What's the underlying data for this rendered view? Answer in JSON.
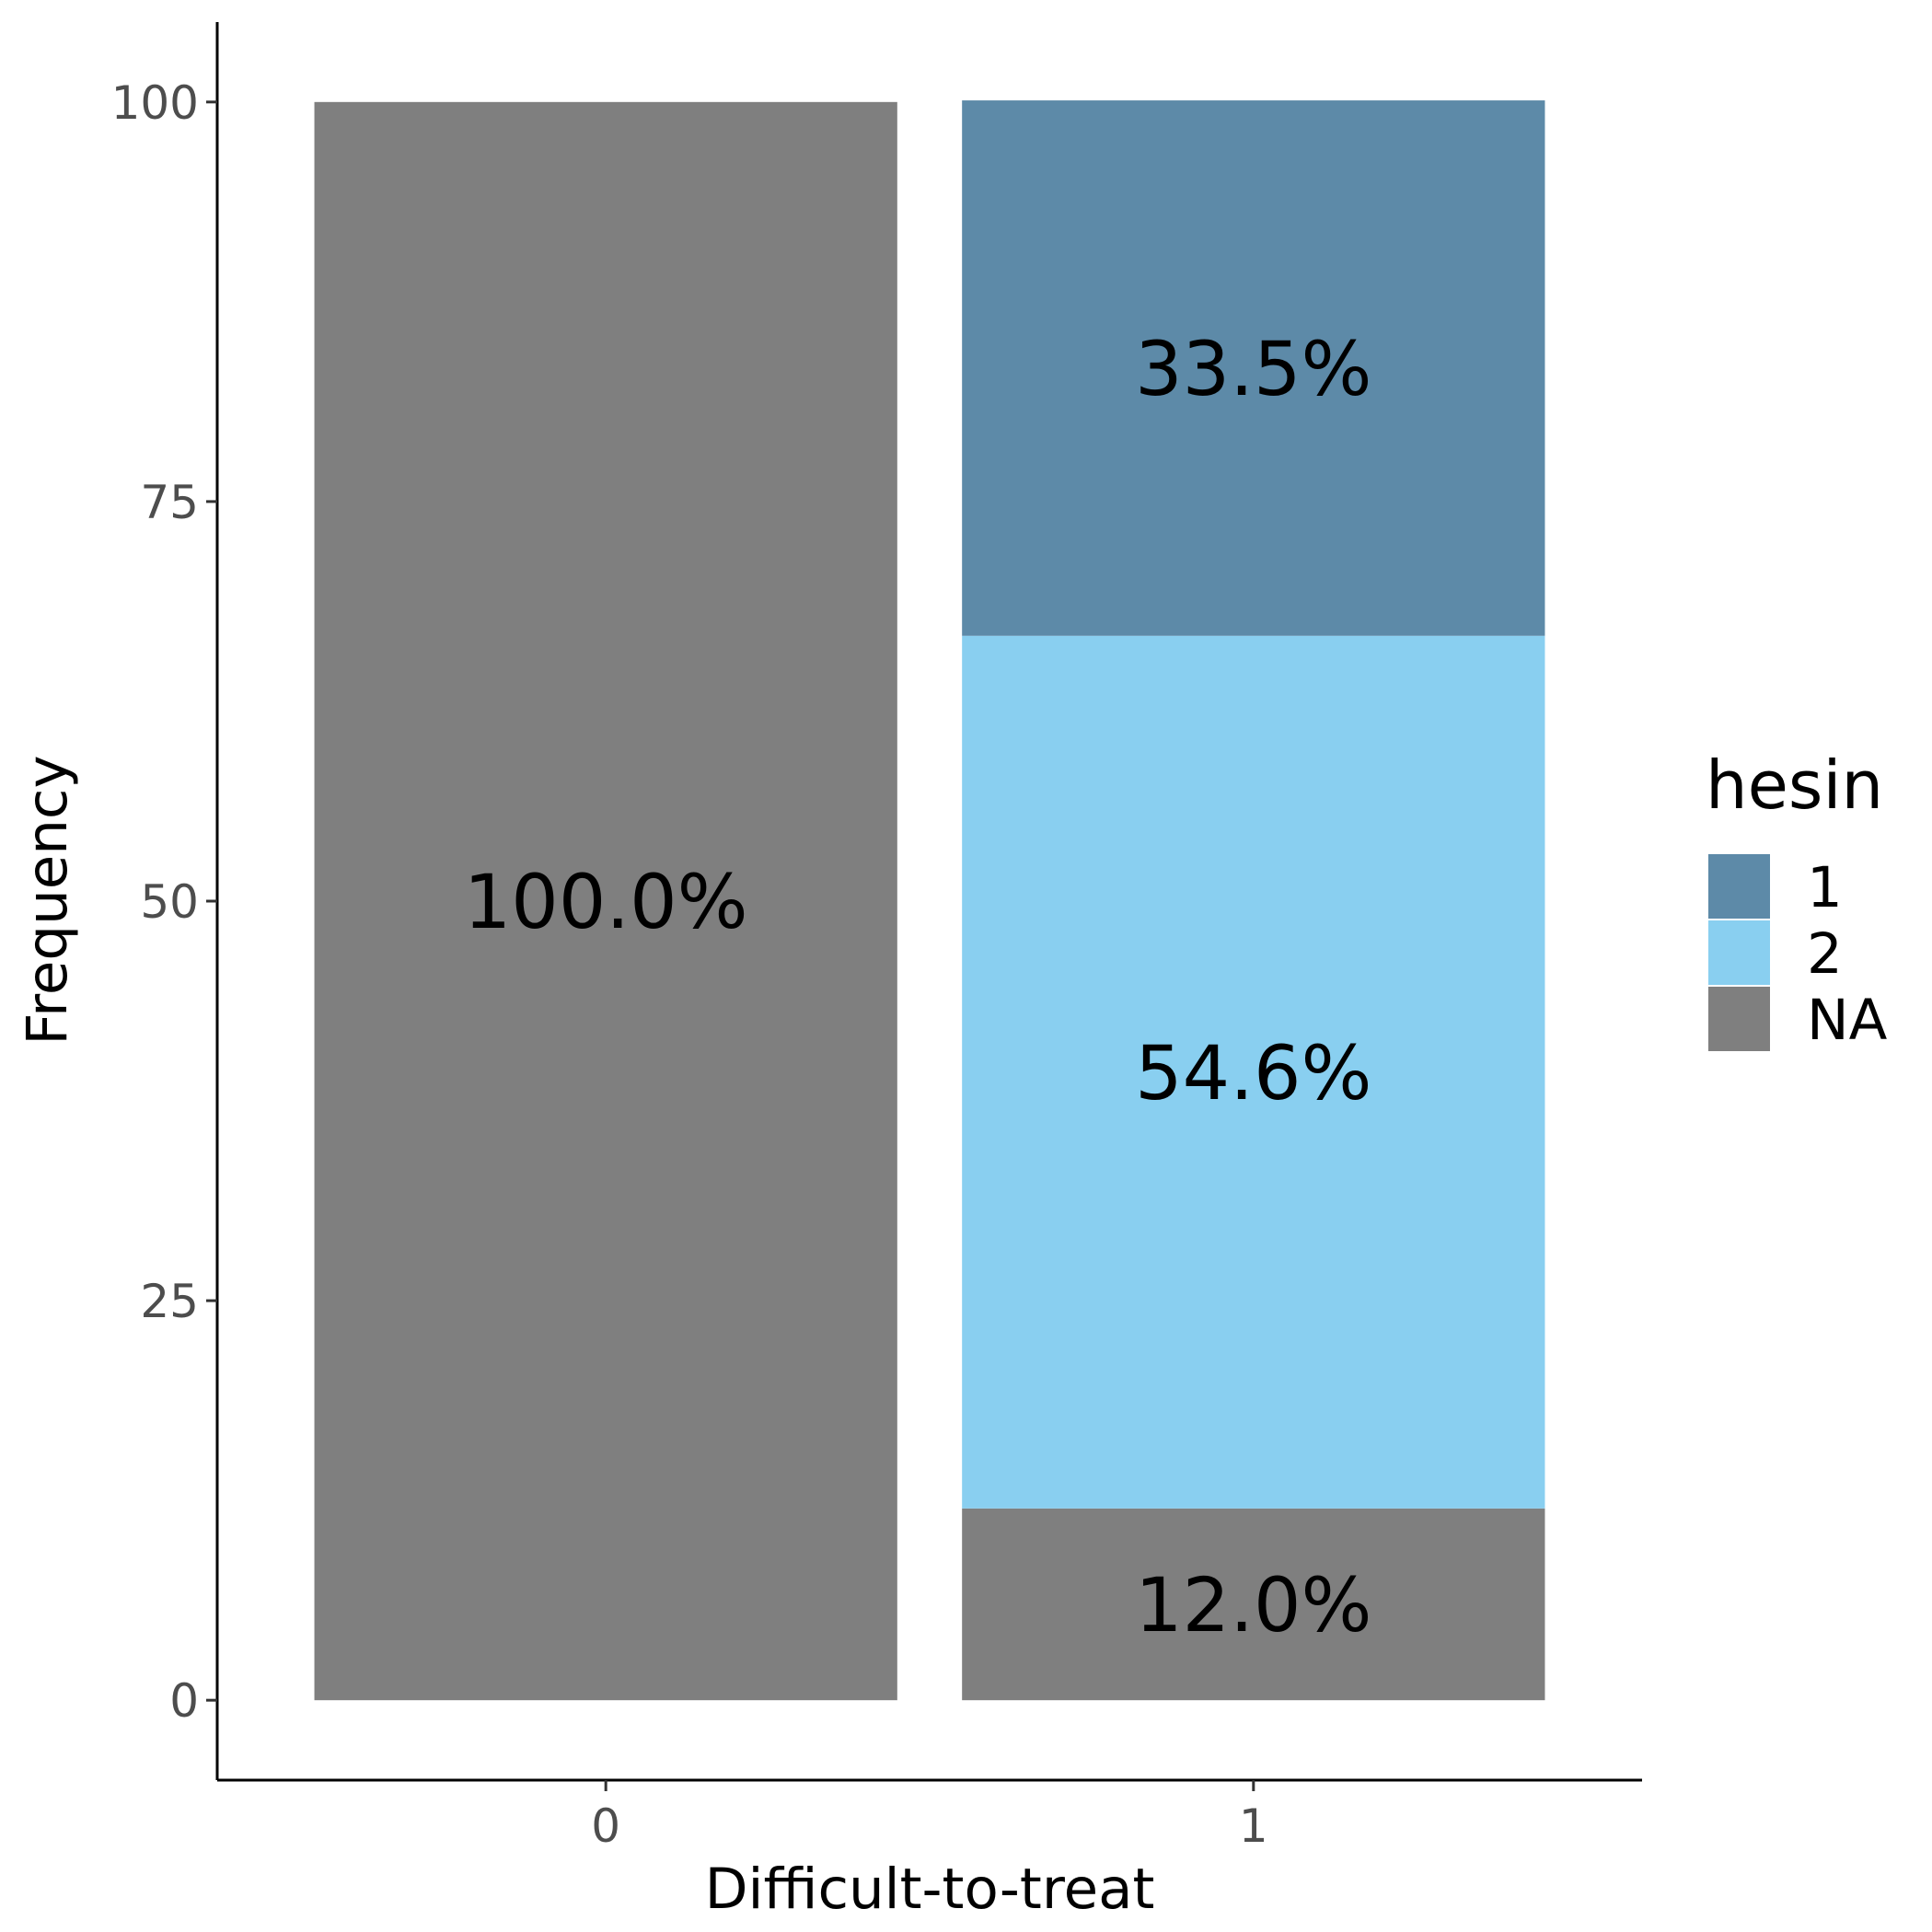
{
  "chart_data": {
    "type": "bar",
    "stacked": true,
    "xlabel": "Difficult-to-treat",
    "ylabel": "Frequency",
    "categories": [
      "0",
      "1"
    ],
    "ylim": [
      -5,
      105
    ],
    "yticks": [
      0,
      25,
      50,
      75,
      100
    ],
    "grid": false,
    "legend": {
      "title": "hesin",
      "placement": "right",
      "entries": [
        {
          "label": "1",
          "color": "#5d8aa8"
        },
        {
          "label": "2",
          "color": "#89cff0"
        },
        {
          "label": "NA",
          "color": "#7f7f7f"
        }
      ]
    },
    "series": [
      {
        "name": "1",
        "color": "#5d8aa8",
        "values": [
          0,
          33.5
        ],
        "labels": [
          "",
          "33.5%"
        ]
      },
      {
        "name": "2",
        "color": "#89cff0",
        "values": [
          0,
          54.6
        ],
        "labels": [
          "",
          "54.6%"
        ]
      },
      {
        "name": "NA",
        "color": "#7f7f7f",
        "values": [
          100.0,
          12.0
        ],
        "labels": [
          "100.0%",
          "12.0%"
        ]
      }
    ]
  }
}
